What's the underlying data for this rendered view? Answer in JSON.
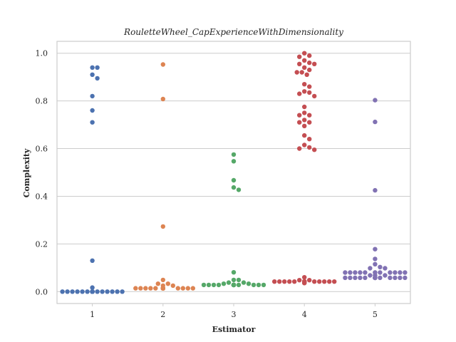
{
  "chart_data": {
    "type": "scatter",
    "title": "RouletteWheel_CapExperienceWithDimensionality",
    "xlabel": "Estimator",
    "ylabel": "Complexity",
    "categories": [
      "1",
      "2",
      "3",
      "4",
      "5"
    ],
    "ylim": [
      -0.05,
      1.05
    ],
    "yticks": [
      "0.0",
      "0.2",
      "0.4",
      "0.6",
      "0.8",
      "1.0"
    ],
    "grid": true,
    "series": [
      {
        "category": "1",
        "color": "#4c72b0",
        "values": [
          0.94,
          0.94,
          0.91,
          0.895,
          0.82,
          0.76,
          0.71,
          0.13,
          0.017,
          0,
          0,
          0,
          0,
          0,
          0,
          0,
          0,
          0,
          0,
          0,
          0,
          0,
          0,
          0,
          0,
          0,
          0,
          0,
          0,
          0,
          0,
          0,
          0,
          0,
          0,
          0,
          0
        ]
      },
      {
        "category": "2",
        "color": "#dd8452",
        "values": [
          0.953,
          0.808,
          0.273,
          0.049,
          0.033,
          0.033,
          0.025,
          0.025,
          0.014,
          0.014,
          0.014,
          0.014,
          0.014,
          0.014,
          0.014,
          0.014,
          0.014,
          0.014,
          0.014,
          0.014,
          0.014,
          0.014,
          0.014,
          0.014,
          0.014,
          0.014,
          0.014,
          0.014,
          0.014,
          0.014,
          0.014,
          0.014,
          0.014,
          0.014,
          0.014,
          0.014,
          0.014,
          0.014
        ]
      },
      {
        "category": "3",
        "color": "#55a868",
        "values": [
          0.575,
          0.547,
          0.467,
          0.437,
          0.427,
          0.081,
          0.049,
          0.049,
          0.038,
          0.038,
          0.033,
          0.033,
          0.028,
          0.028,
          0.028,
          0.028,
          0.028,
          0.028,
          0.028,
          0.028,
          0.028,
          0.028,
          0.028,
          0.028,
          0.028,
          0.028,
          0.028,
          0.028,
          0.028,
          0.028,
          0.028,
          0.028,
          0.028,
          0.028,
          0.028,
          0.028,
          0.028,
          0.028
        ]
      },
      {
        "category": "4",
        "color": "#c44e52",
        "values": [
          1.0,
          0.99,
          0.985,
          0.97,
          0.96,
          0.955,
          0.955,
          0.94,
          0.93,
          0.92,
          0.92,
          0.91,
          0.87,
          0.86,
          0.84,
          0.835,
          0.83,
          0.82,
          0.775,
          0.75,
          0.74,
          0.74,
          0.72,
          0.71,
          0.71,
          0.695,
          0.655,
          0.64,
          0.615,
          0.605,
          0.6,
          0.595,
          0.06,
          0.048,
          0.048,
          0.042,
          0.042,
          0.042,
          0.042,
          0.042,
          0.042,
          0.042,
          0.042,
          0.042,
          0.042,
          0.042,
          0.042,
          0.042,
          0.042,
          0.042,
          0.042,
          0.042,
          0.042,
          0.042,
          0.042,
          0.042,
          0.042,
          0.042,
          0.042,
          0.042,
          0.042,
          0.042,
          0.042,
          0.042,
          0.042,
          0.042,
          0.042,
          0.042,
          0.042,
          0.042,
          0.036,
          0.036
        ]
      },
      {
        "category": "5",
        "color": "#8172b3",
        "values": [
          0.803,
          0.712,
          0.425,
          0.178,
          0.137,
          0.115,
          0.103,
          0.098,
          0.098,
          0.08,
          0.08,
          0.08,
          0.08,
          0.08,
          0.08,
          0.08,
          0.08,
          0.08,
          0.08,
          0.08,
          0.08,
          0.068,
          0.068,
          0.068,
          0.058,
          0.058,
          0.058,
          0.058,
          0.058,
          0.058,
          0.058,
          0.058,
          0.058,
          0.058,
          0.058,
          0.058,
          0.058,
          0.058,
          0.058,
          0.058,
          0.058,
          0.058,
          0.058,
          0.058,
          0.058
        ]
      }
    ]
  }
}
